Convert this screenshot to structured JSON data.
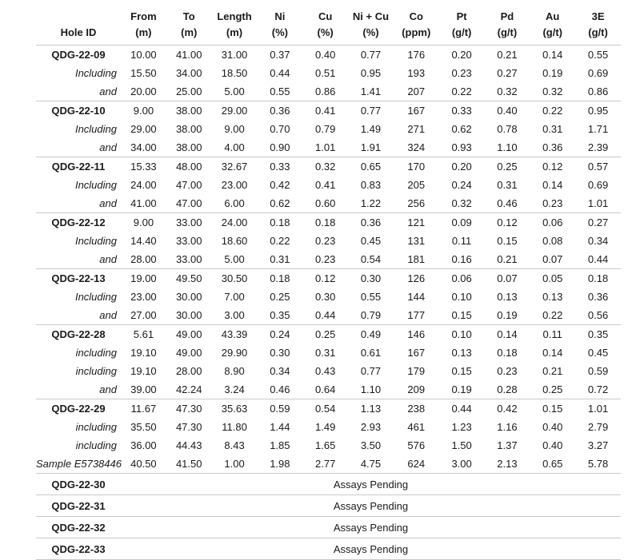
{
  "colors": {
    "text": "#1a1a1a",
    "rule": "#c9c9c9",
    "background": "#ffffff"
  },
  "table": {
    "columns": [
      {
        "label": "Hole ID",
        "unit": ""
      },
      {
        "label": "From",
        "unit": "(m)"
      },
      {
        "label": "To",
        "unit": "(m)"
      },
      {
        "label": "Length",
        "unit": "(m)"
      },
      {
        "label": "Ni",
        "unit": "(%)"
      },
      {
        "label": "Cu",
        "unit": "(%)"
      },
      {
        "label": "Ni + Cu",
        "unit": "(%)"
      },
      {
        "label": "Co",
        "unit": "(ppm)"
      },
      {
        "label": "Pt",
        "unit": "(g/t)"
      },
      {
        "label": "Pd",
        "unit": "(g/t)"
      },
      {
        "label": "Au",
        "unit": "(g/t)"
      },
      {
        "label": "3E",
        "unit": "(g/t)"
      }
    ],
    "rows": [
      {
        "type": "hole",
        "label": "QDG-22-09",
        "values": [
          "10.00",
          "41.00",
          "31.00",
          "0.37",
          "0.40",
          "0.77",
          "176",
          "0.20",
          "0.21",
          "0.14",
          "0.55"
        ]
      },
      {
        "type": "qualifier",
        "label": "Including",
        "values": [
          "15.50",
          "34.00",
          "18.50",
          "0.44",
          "0.51",
          "0.95",
          "193",
          "0.23",
          "0.27",
          "0.19",
          "0.69"
        ]
      },
      {
        "type": "qualifier",
        "label": "and",
        "values": [
          "20.00",
          "25.00",
          "5.00",
          "0.55",
          "0.86",
          "1.41",
          "207",
          "0.22",
          "0.32",
          "0.32",
          "0.86"
        ]
      },
      {
        "type": "hole",
        "label": "QDG-22-10",
        "values": [
          "9.00",
          "38.00",
          "29.00",
          "0.36",
          "0.41",
          "0.77",
          "167",
          "0.33",
          "0.40",
          "0.22",
          "0.95"
        ]
      },
      {
        "type": "qualifier",
        "label": "Including",
        "values": [
          "29.00",
          "38.00",
          "9.00",
          "0.70",
          "0.79",
          "1.49",
          "271",
          "0.62",
          "0.78",
          "0.31",
          "1.71"
        ]
      },
      {
        "type": "qualifier",
        "label": "and",
        "values": [
          "34.00",
          "38.00",
          "4.00",
          "0.90",
          "1.01",
          "1.91",
          "324",
          "0.93",
          "1.10",
          "0.36",
          "2.39"
        ]
      },
      {
        "type": "hole",
        "label": "QDG-22-11",
        "values": [
          "15.33",
          "48.00",
          "32.67",
          "0.33",
          "0.32",
          "0.65",
          "170",
          "0.20",
          "0.25",
          "0.12",
          "0.57"
        ]
      },
      {
        "type": "qualifier",
        "label": "Including",
        "values": [
          "24.00",
          "47.00",
          "23.00",
          "0.42",
          "0.41",
          "0.83",
          "205",
          "0.24",
          "0.31",
          "0.14",
          "0.69"
        ]
      },
      {
        "type": "qualifier",
        "label": "and",
        "values": [
          "41.00",
          "47.00",
          "6.00",
          "0.62",
          "0.60",
          "1.22",
          "256",
          "0.32",
          "0.46",
          "0.23",
          "1.01"
        ]
      },
      {
        "type": "hole",
        "label": "QDG-22-12",
        "values": [
          "9.00",
          "33.00",
          "24.00",
          "0.18",
          "0.18",
          "0.36",
          "121",
          "0.09",
          "0.12",
          "0.06",
          "0.27"
        ]
      },
      {
        "type": "qualifier",
        "label": "Including",
        "values": [
          "14.40",
          "33.00",
          "18.60",
          "0.22",
          "0.23",
          "0.45",
          "131",
          "0.11",
          "0.15",
          "0.08",
          "0.34"
        ]
      },
      {
        "type": "qualifier",
        "label": "and",
        "values": [
          "28.00",
          "33.00",
          "5.00",
          "0.31",
          "0.23",
          "0.54",
          "181",
          "0.16",
          "0.21",
          "0.07",
          "0.44"
        ]
      },
      {
        "type": "hole",
        "label": "QDG-22-13",
        "values": [
          "19.00",
          "49.50",
          "30.50",
          "0.18",
          "0.12",
          "0.30",
          "126",
          "0.06",
          "0.07",
          "0.05",
          "0.18"
        ]
      },
      {
        "type": "qualifier",
        "label": "Including",
        "values": [
          "23.00",
          "30.00",
          "7.00",
          "0.25",
          "0.30",
          "0.55",
          "144",
          "0.10",
          "0.13",
          "0.13",
          "0.36"
        ]
      },
      {
        "type": "qualifier",
        "label": "and",
        "values": [
          "27.00",
          "30.00",
          "3.00",
          "0.35",
          "0.44",
          "0.79",
          "177",
          "0.15",
          "0.19",
          "0.22",
          "0.56"
        ]
      },
      {
        "type": "hole",
        "label": "QDG-22-28",
        "values": [
          "5.61",
          "49.00",
          "43.39",
          "0.24",
          "0.25",
          "0.49",
          "146",
          "0.10",
          "0.14",
          "0.11",
          "0.35"
        ]
      },
      {
        "type": "qualifier",
        "label": "including",
        "values": [
          "19.10",
          "49.00",
          "29.90",
          "0.30",
          "0.31",
          "0.61",
          "167",
          "0.13",
          "0.18",
          "0.14",
          "0.45"
        ]
      },
      {
        "type": "qualifier",
        "label": "including",
        "values": [
          "19.10",
          "28.00",
          "8.90",
          "0.34",
          "0.43",
          "0.77",
          "179",
          "0.15",
          "0.23",
          "0.21",
          "0.59"
        ]
      },
      {
        "type": "qualifier",
        "label": "and",
        "values": [
          "39.00",
          "42.24",
          "3.24",
          "0.46",
          "0.64",
          "1.10",
          "209",
          "0.19",
          "0.28",
          "0.25",
          "0.72"
        ]
      },
      {
        "type": "hole",
        "label": "QDG-22-29",
        "values": [
          "11.67",
          "47.30",
          "35.63",
          "0.59",
          "0.54",
          "1.13",
          "238",
          "0.44",
          "0.42",
          "0.15",
          "1.01"
        ]
      },
      {
        "type": "qualifier",
        "label": "including",
        "values": [
          "35.50",
          "47.30",
          "11.80",
          "1.44",
          "1.49",
          "2.93",
          "461",
          "1.23",
          "1.16",
          "0.40",
          "2.79"
        ]
      },
      {
        "type": "qualifier",
        "label": "including",
        "values": [
          "36.00",
          "44.43",
          "8.43",
          "1.85",
          "1.65",
          "3.50",
          "576",
          "1.50",
          "1.37",
          "0.40",
          "3.27"
        ]
      },
      {
        "type": "qualifier",
        "label": "Sample E5738446",
        "values": [
          "40.50",
          "41.50",
          "1.00",
          "1.98",
          "2.77",
          "4.75",
          "624",
          "3.00",
          "2.13",
          "0.65",
          "5.78"
        ]
      },
      {
        "type": "pending",
        "label": "QDG-22-30",
        "note": "Assays Pending"
      },
      {
        "type": "pending",
        "label": "QDG-22-31",
        "note": "Assays Pending"
      },
      {
        "type": "pending",
        "label": "QDG-22-32",
        "note": "Assays Pending"
      },
      {
        "type": "pending",
        "label": "QDG-22-33",
        "note": "Assays Pending"
      }
    ]
  }
}
